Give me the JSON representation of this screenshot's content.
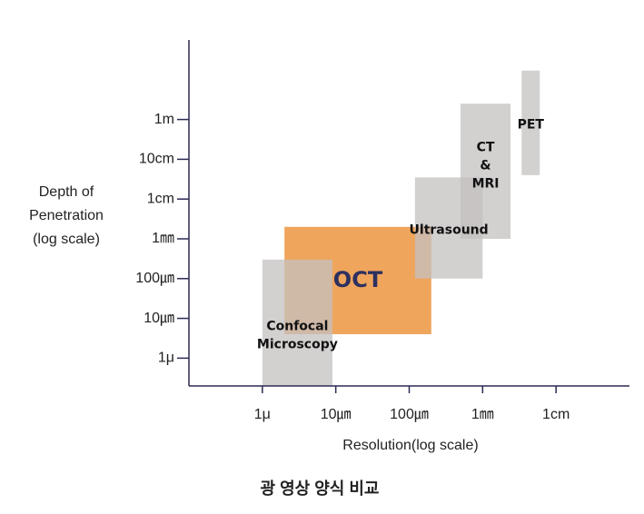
{
  "chart_data": {
    "type": "range-box",
    "x_label": "Resolution(log scale)",
    "y_label": [
      "Depth of",
      "Penetration",
      "(log scale)"
    ],
    "caption": "광 영상 양식 비교",
    "log_x": true,
    "log_y": true,
    "xlim": [
      1e-07,
      0.1
    ],
    "ylim": [
      2e-07,
      100
    ],
    "xticks": [
      {
        "value": 1e-06,
        "label": "1μ"
      },
      {
        "value": 1e-05,
        "label": "10㎛"
      },
      {
        "value": 0.0001,
        "label": "100㎛"
      },
      {
        "value": 0.001,
        "label": "1㎜"
      },
      {
        "value": 0.01,
        "label": "1cm"
      }
    ],
    "yticks": [
      {
        "value": 1e-06,
        "label": "1μ"
      },
      {
        "value": 1e-05,
        "label": "10㎛"
      },
      {
        "value": 0.0001,
        "label": "100㎛"
      },
      {
        "value": 0.001,
        "label": "1㎜"
      },
      {
        "value": 0.01,
        "label": "1cm"
      },
      {
        "value": 0.1,
        "label": "10cm"
      },
      {
        "value": 1,
        "label": "1m"
      }
    ],
    "series": [
      {
        "label": [
          "OCT"
        ],
        "color": "#f0a55c",
        "x": [
          2e-06,
          0.0002
        ],
        "y": [
          4e-06,
          0.002
        ]
      },
      {
        "label": [
          "Confocal",
          "Microscopy"
        ],
        "color": "#c4c0c0",
        "x": [
          1e-06,
          9e-06
        ],
        "y": [
          2e-07,
          0.0003
        ]
      },
      {
        "label": [
          "Ultrasound"
        ],
        "color": "#c4c0c0",
        "x": [
          0.00012,
          0.001
        ],
        "y": [
          0.0001,
          0.035
        ]
      },
      {
        "label": [
          "CT",
          "&",
          "MRI"
        ],
        "color": "#c4c0c0",
        "x": [
          0.0005,
          0.0024
        ],
        "y": [
          0.001,
          2.5
        ]
      },
      {
        "label": [
          "PET"
        ],
        "color": "#c4c0c0",
        "x": [
          0.0034,
          0.006
        ],
        "y": [
          0.04,
          17
        ]
      }
    ]
  }
}
